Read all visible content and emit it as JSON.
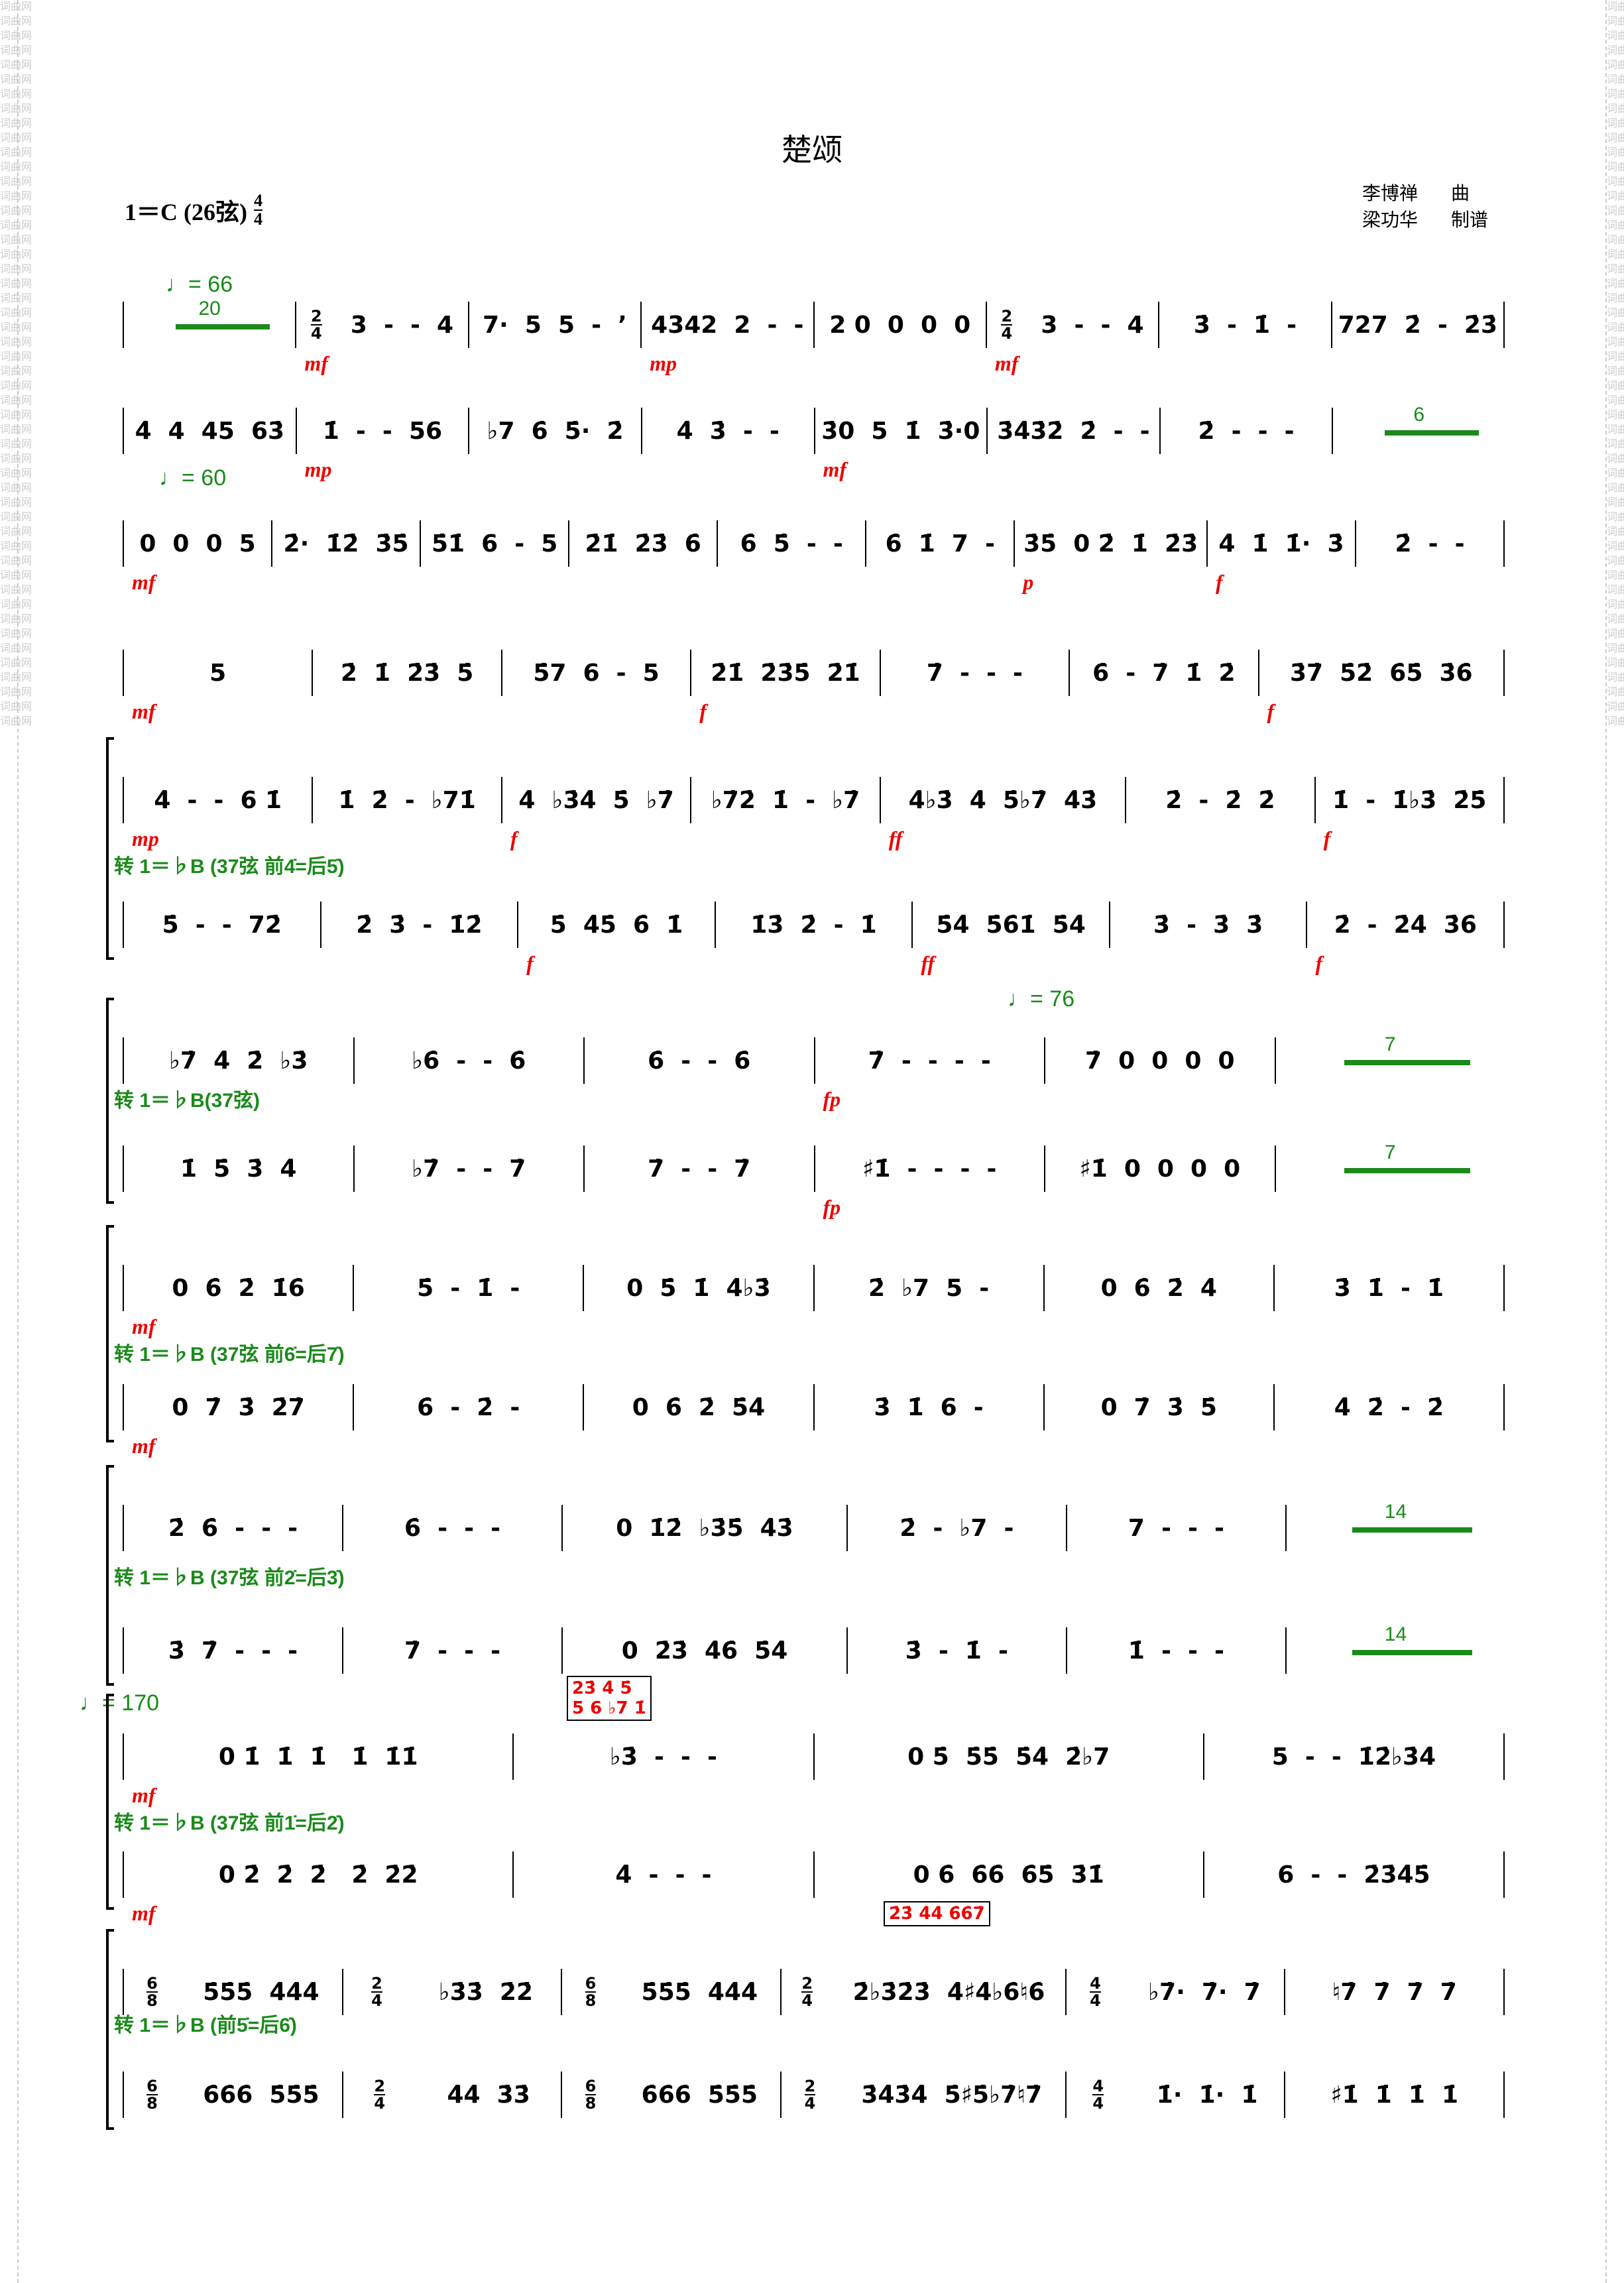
{
  "watermark": "词曲网",
  "title": "楚颂",
  "key": {
    "text": "1＝C (26弦)",
    "time_top": "4",
    "time_bottom": "4"
  },
  "credits": [
    {
      "name": "李博禅",
      "role": "曲"
    },
    {
      "name": "梁功华",
      "role": "制谱"
    }
  ],
  "colors": {
    "dynamics": "#ee0000",
    "annotation": "#1a8a1a",
    "fingering": "#0000cc"
  },
  "tempos": [
    "♩= 66",
    "♩= 60",
    "♩= 76",
    "♩= 170"
  ],
  "annotations": [
    "转 1＝♭B (37弦 前4̇=后5̇)",
    "转 1＝♭B(37弦)",
    "转 1＝♭B (37弦 前6̇=后7̇)",
    "转 1＝♭B (37弦 前2̇=后3̇)",
    "转 1＝♭B (37弦 前1̇=后2̇)",
    "转 1＝♭B (前5̇=后6̇)"
  ],
  "boxes": [
    "23̇ 4̇ 5̇\n5 6 ♭7 1̇",
    "2̇3̇ 4̇4̇ 6̇6̇7̇"
  ],
  "rows": [
    {
      "staves": [
        [
          {
            "rest": "20"
          },
          {
            "n": "3  -  -  4",
            "ts": [
              "2",
              "4"
            ],
            "d": "mf"
          },
          {
            "n": "7·  5  5  -  ’"
          },
          {
            "n": "4342  2  -  -",
            "d": "mp"
          },
          {
            "n": "2 0  0  0  0"
          },
          {
            "n": "3  -  -  4",
            "ts": [
              "2",
              "4"
            ],
            "d": "mf"
          },
          {
            "n": "3̇  -  1̇  -"
          },
          {
            "n": "727  2̇  -  2̇3̇"
          }
        ]
      ]
    },
    {
      "staves": [
        [
          {
            "n": "4̇  4  45  63̇"
          },
          {
            "n": "1̇  -  -  56",
            "d": "mp"
          },
          {
            "n": "♭7  6̇  5̇·  2̇"
          },
          {
            "n": "4̇  3̇  -  -"
          },
          {
            "n": "3̇0  5  1̇  3̇·0",
            "d": "mf"
          },
          {
            "n": "3̇4̇3̇2̇  2̇  -  -"
          },
          {
            "n": "2̇  -  -  -"
          },
          {
            "rest": "6"
          }
        ]
      ]
    },
    {
      "staves": [
        [
          {
            "n": "0  0  0  5",
            "d": "mf"
          },
          {
            "n": "2̇·  1̇2̇  3̇5̇"
          },
          {
            "n": "5̇1̇  6  -  5"
          },
          {
            "n": "2̇1̇  2̇3̇  6̇"
          },
          {
            "n": "6̇  5̇  -  -"
          },
          {
            "n": "6̇  1̇  7  -"
          },
          {
            "n": "3̇5̇  0 2̇  1̇  2̇3̇",
            "d": "p"
          },
          {
            "n": "4̇  1̇  1̇·  3̇",
            "d": "f"
          },
          {
            "n": "2̇  -  -"
          }
        ]
      ]
    },
    {
      "staves": [
        [
          {
            "n": "5",
            "d": "mf"
          },
          {
            "n": "2̇  1̇  2̇3̇  5̇"
          },
          {
            "n": "5̇7  6  -  5"
          },
          {
            "n": "2̇1̇  2̇3̇5̇  2̇1̇",
            "d": "f"
          },
          {
            "n": "7̇  -  -  -"
          },
          {
            "n": "6̇  -  7̇  1̇  2̇"
          },
          {
            "n": "3̇7̇  5̇2̇  6̇5̇  3̇6̇",
            "d": "f"
          }
        ]
      ]
    },
    {
      "staves": [
        [
          {
            "n": "4̇  -  -  6 1̇",
            "d": "mp"
          },
          {
            "n": "1̇  2̇  -  ♭71̇"
          },
          {
            "n": "4̇  ♭3̇4̇  5̇  ♭7̇",
            "d": "f"
          },
          {
            "n": "♭7̇2̇  1̇  -  ♭7̇"
          },
          {
            "n": "4̇♭3̇  4̇  5̇♭7̇  4̇3̇",
            "d": "ff"
          },
          {
            "n": "2̇  -  2̇  2̇"
          },
          {
            "n": "1̇  -  1̇♭3̇  2̇5̇",
            "d": "f"
          }
        ],
        [
          {
            "n": "5̇  -  -  72̇"
          },
          {
            "n": "2̇  3̇  -  1̇2̇"
          },
          {
            "n": "5̇  4̇5̇  6̇  1̇",
            "d": "f"
          },
          {
            "n": "1̇3̇  2̇  -  1̇"
          },
          {
            "n": "5̇4̇  5̇6̇1̇  5̇4̇",
            "d": "ff"
          },
          {
            "n": "3̇  -  3̇  3̇"
          },
          {
            "n": "2̇  -  2̇4̇  3̇6̇",
            "d": "f"
          }
        ]
      ]
    },
    {
      "staves": [
        [
          {
            "n": "♭7̇  4̇  2̇  ♭3̇"
          },
          {
            "n": "♭6̇  -  -  6̇"
          },
          {
            "n": "6̇  -  -  6̇"
          },
          {
            "n": "7̇  -  -  -  -",
            "d": "fp"
          },
          {
            "n": "7̇  0  0  0  0"
          },
          {
            "rest": "7"
          }
        ],
        [
          {
            "n": "1̇  5̇  3̇  4̇"
          },
          {
            "n": "♭7̇  -  -  7̇"
          },
          {
            "n": "7̇  -  -  7̇"
          },
          {
            "n": "♯1̇  -  -  -  -",
            "d": "fp"
          },
          {
            "n": "♯1̇  0  0  0  0"
          },
          {
            "rest": "7"
          }
        ]
      ]
    },
    {
      "staves": [
        [
          {
            "n": "0  6̇  2̇  1̇6̇",
            "d": "mf"
          },
          {
            "n": "5̇  -  1̇  -"
          },
          {
            "n": "0  5̇  1̇  4̇♭3̇"
          },
          {
            "n": "2̇  ♭7  5  -"
          },
          {
            "n": "0  6̇  2̇  4̇"
          },
          {
            "n": "3̇  1̇  -  1̇"
          }
        ],
        [
          {
            "n": "0  7̇  3̇  2̇7̇",
            "d": "mf"
          },
          {
            "n": "6̇  -  2̇  -"
          },
          {
            "n": "0  6̇  2̇  5̇4̇"
          },
          {
            "n": "3̇  1̇  6  -"
          },
          {
            "n": "0  7̇  3̇  5̇"
          },
          {
            "n": "4̇  2̇  -  2̇"
          }
        ]
      ]
    },
    {
      "staves": [
        [
          {
            "n": "2̇  6̇  -  -  -"
          },
          {
            "n": "6̇  -  -  -"
          },
          {
            "n": "0  1̇2̇  ♭3̇5̇  4̇3̇"
          },
          {
            "n": "2̇  -  ♭7  -"
          },
          {
            "n": "7  -  -  -"
          },
          {
            "rest": "14"
          }
        ],
        [
          {
            "n": "3̇  7̇  -  -  -"
          },
          {
            "n": "7̇  -  -  -"
          },
          {
            "n": "0  2̇3̇  4̇6̇  5̇4̇"
          },
          {
            "n": "3̇  -  1̇  -"
          },
          {
            "n": "1̇  -  -  -"
          },
          {
            "rest": "14"
          }
        ]
      ]
    },
    {
      "staves": [
        [
          {
            "n": "0 1̇  1̇  1̇   1̇  1̇1̇",
            "d": "mf"
          },
          {
            "n": "♭3̇  -  -  -"
          },
          {
            "n": "0 5̇  5̇5̇  5̇4̇  2̇♭7"
          },
          {
            "n": "5  -  -  1̇2̇♭3̇4̇"
          }
        ],
        [
          {
            "n": "0 2̇  2̇  2̇   2̇  2̇2̇",
            "d": "mf"
          },
          {
            "n": "4̇  -  -  -"
          },
          {
            "n": "0 6̇  6̇6̇  6̇5̇  3̇1̇"
          },
          {
            "n": "6  -  -  2̇3̇4̇5̇"
          }
        ]
      ]
    },
    {
      "staves": [
        [
          {
            "n": "5̇5̇5̇  4̇4̇4̇",
            "ts": [
              "6",
              "8"
            ]
          },
          {
            "n": "♭3̇3̇  2̇2̇",
            "ts": [
              "2",
              "4"
            ]
          },
          {
            "n": "5̇5̇5̇  4̇4̇4̇",
            "ts": [
              "6",
              "8"
            ]
          },
          {
            "n": "2̇♭3̇2̇3̇  4̇♯4̇♭6̇♮6̇",
            "ts": [
              "2",
              "4"
            ]
          },
          {
            "n": "♭7̇·  7̇·  7̇",
            "ts": [
              "4",
              "4"
            ]
          },
          {
            "n": "♮7̇  7̇  7̇  7̇"
          }
        ],
        [
          {
            "n": "6̇6̇6̇  5̇5̇5̇",
            "ts": [
              "6",
              "8"
            ]
          },
          {
            "n": "4̇4̇  3̇3̇",
            "ts": [
              "2",
              "4"
            ]
          },
          {
            "n": "6̇6̇6̇  5̇5̇5̇",
            "ts": [
              "6",
              "8"
            ]
          },
          {
            "n": "3̇4̇3̇4̇  5̇♯5̇♭7̇♮7̇",
            "ts": [
              "2",
              "4"
            ]
          },
          {
            "n": "1̇·  1̇·  1̇",
            "ts": [
              "4",
              "4"
            ]
          },
          {
            "n": "♯1̇  1̇  1̇  1̇"
          }
        ]
      ]
    }
  ]
}
